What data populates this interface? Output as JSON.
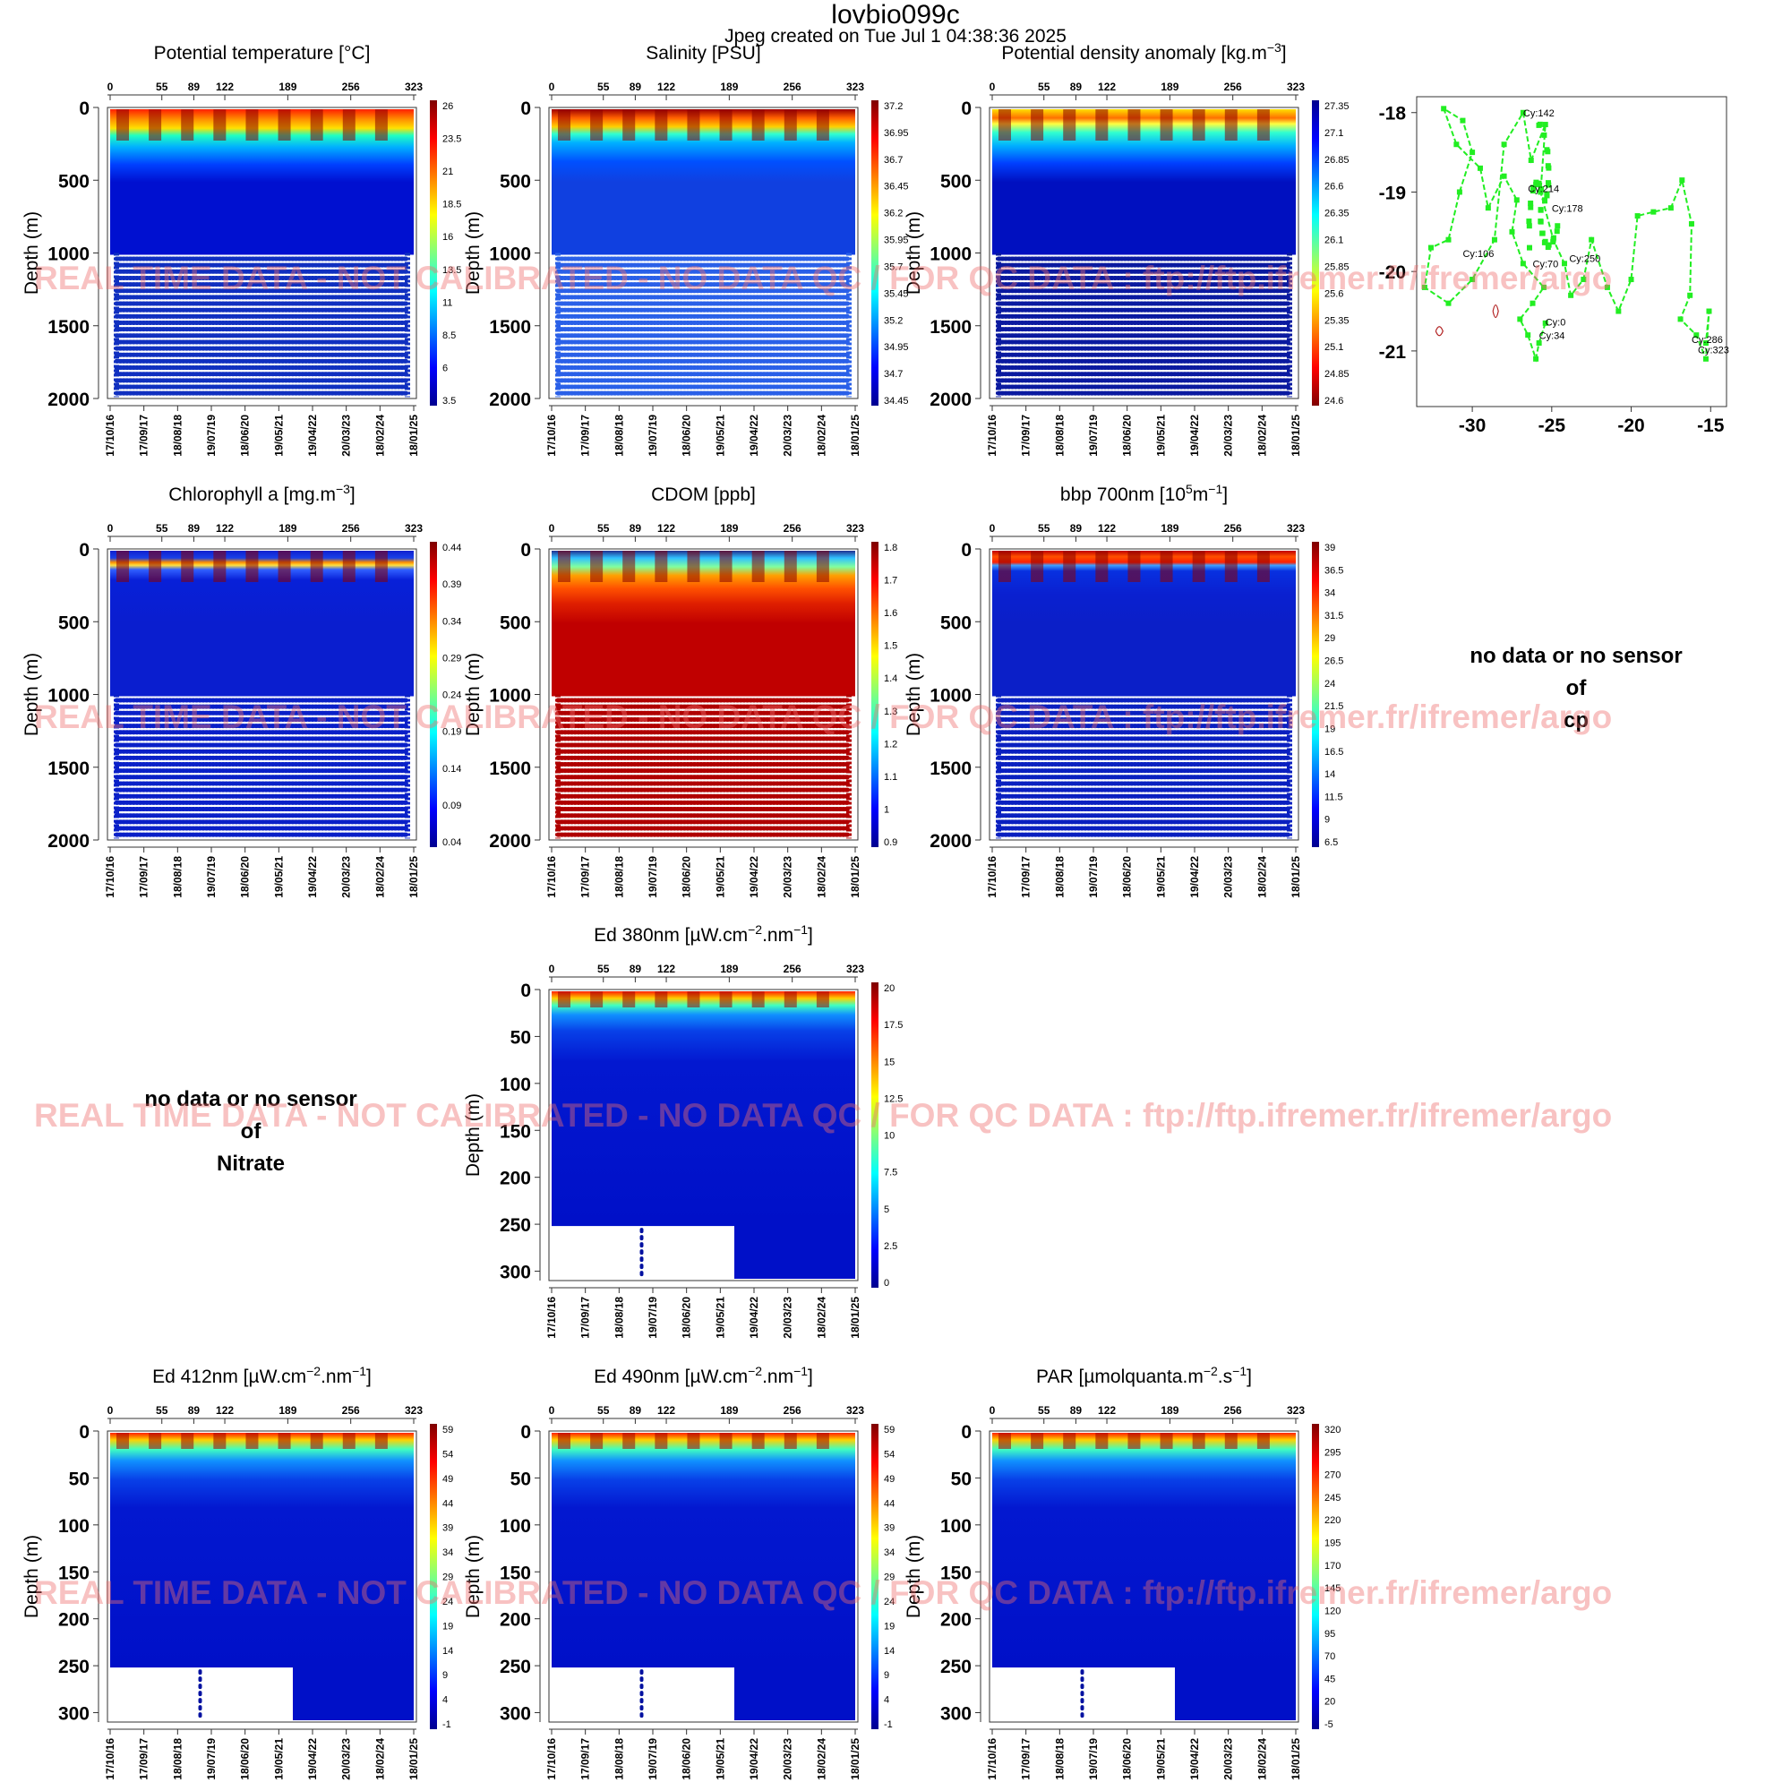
{
  "header": {
    "title": "lovbio099c",
    "subtitle": "Jpeg created on  Tue Jul  1 04:38:36 2025"
  },
  "watermark": "REAL TIME DATA - NOT CALIBRATED - NO DATA QC  /  FOR QC DATA : ftp://ftp.ifremer.fr/ifremer/argo",
  "colors": {
    "jet": [
      "#00008f",
      "#0000ff",
      "#007fff",
      "#00ffff",
      "#7fff7f",
      "#ffff00",
      "#ff7f00",
      "#ff0000",
      "#7f0000"
    ],
    "track": "#22ee22",
    "contour": "#b22222",
    "watermark": "#ee6e6e"
  },
  "chart_data": [
    {
      "type": "heatmap",
      "panel": "temp",
      "title_main": "Potential temperature [",
      "title_sup": "",
      "title_end": "°C]",
      "ylabel": "Depth (m)",
      "ylim": [
        2000,
        0
      ],
      "yticks": [
        0,
        500,
        1000,
        1500,
        2000
      ],
      "cycles": [
        0,
        55,
        89,
        122,
        189,
        256,
        323
      ],
      "dates": [
        "17/10/16",
        "17/09/17",
        "18/08/18",
        "19/07/19",
        "18/06/20",
        "19/05/21",
        "19/04/22",
        "20/03/23",
        "18/02/24",
        "18/01/25"
      ],
      "colorbar": [
        "26",
        "23.5",
        "21",
        "18.5",
        "16",
        "13.5",
        "11",
        "8.5",
        "6",
        "3.5"
      ],
      "reverse": false
    },
    {
      "type": "heatmap",
      "panel": "salinity",
      "title_main": "Salinity [PSU]",
      "title_sup": "",
      "title_end": "",
      "ylabel": "Depth (m)",
      "ylim": [
        2000,
        0
      ],
      "yticks": [
        0,
        500,
        1000,
        1500,
        2000
      ],
      "cycles": [
        0,
        55,
        89,
        122,
        189,
        256,
        323
      ],
      "dates": [
        "17/10/16",
        "17/09/17",
        "18/08/18",
        "19/07/19",
        "18/06/20",
        "19/05/21",
        "19/04/22",
        "20/03/23",
        "18/02/24",
        "18/01/25"
      ],
      "colorbar": [
        "37.2",
        "36.95",
        "36.7",
        "36.45",
        "36.2",
        "35.95",
        "35.7",
        "35.45",
        "35.2",
        "34.95",
        "34.7",
        "34.45"
      ],
      "reverse": false
    },
    {
      "type": "heatmap",
      "panel": "density",
      "title_main": "Potential density anomaly [kg.m",
      "title_sup": "−3",
      "title_end": "]",
      "ylabel": "Depth (m)",
      "ylim": [
        2000,
        0
      ],
      "yticks": [
        0,
        500,
        1000,
        1500,
        2000
      ],
      "cycles": [
        0,
        55,
        89,
        122,
        189,
        256,
        323
      ],
      "dates": [
        "17/10/16",
        "17/09/17",
        "18/08/18",
        "19/07/19",
        "18/06/20",
        "19/05/21",
        "19/04/22",
        "20/03/23",
        "18/02/24",
        "18/01/25"
      ],
      "colorbar": [
        "27.35",
        "27.1",
        "26.85",
        "26.6",
        "26.35",
        "26.1",
        "25.85",
        "25.6",
        "25.35",
        "25.1",
        "24.85",
        "24.6"
      ],
      "reverse": true
    },
    {
      "type": "heatmap",
      "panel": "chla",
      "title_main": "Chlorophyll a [mg.m",
      "title_sup": "−3",
      "title_end": "]",
      "ylabel": "Depth (m)",
      "ylim": [
        2000,
        0
      ],
      "yticks": [
        0,
        500,
        1000,
        1500,
        2000
      ],
      "cycles": [
        0,
        55,
        89,
        122,
        189,
        256,
        323
      ],
      "dates": [
        "17/10/16",
        "17/09/17",
        "18/08/18",
        "19/07/19",
        "18/06/20",
        "19/05/21",
        "19/04/22",
        "20/03/23",
        "18/02/24",
        "18/01/25"
      ],
      "colorbar": [
        "0.44",
        "0.39",
        "0.34",
        "0.29",
        "0.24",
        "0.19",
        "0.14",
        "0.09",
        "0.04"
      ],
      "reverse": false
    },
    {
      "type": "heatmap",
      "panel": "cdom",
      "title_main": "CDOM  [ppb]",
      "title_sup": "",
      "title_end": "",
      "ylabel": "Depth (m)",
      "ylim": [
        2000,
        0
      ],
      "yticks": [
        0,
        500,
        1000,
        1500,
        2000
      ],
      "cycles": [
        0,
        55,
        89,
        122,
        189,
        256,
        323
      ],
      "dates": [
        "17/10/16",
        "17/09/17",
        "18/08/18",
        "19/07/19",
        "18/06/20",
        "19/05/21",
        "19/04/22",
        "20/03/23",
        "18/02/24",
        "18/01/25"
      ],
      "colorbar": [
        "1.8",
        "1.7",
        "1.6",
        "1.5",
        "1.4",
        "1.3",
        "1.2",
        "1.1",
        "1",
        "0.9"
      ],
      "reverse": false
    },
    {
      "type": "heatmap",
      "panel": "bbp",
      "title_main": "bbp 700nm [10",
      "title_sup": "5",
      "title_end": "m",
      "title_sup2": "−1",
      "title_end2": "]",
      "ylabel": "Depth (m)",
      "ylim": [
        2000,
        0
      ],
      "yticks": [
        0,
        500,
        1000,
        1500,
        2000
      ],
      "cycles": [
        0,
        55,
        89,
        122,
        189,
        256,
        323
      ],
      "dates": [
        "17/10/16",
        "17/09/17",
        "18/08/18",
        "19/07/19",
        "18/06/20",
        "19/05/21",
        "19/04/22",
        "20/03/23",
        "18/02/24",
        "18/01/25"
      ],
      "colorbar": [
        "39",
        "36.5",
        "34",
        "31.5",
        "29",
        "26.5",
        "24",
        "21.5",
        "19",
        "16.5",
        "14",
        "11.5",
        "9",
        "6.5"
      ],
      "reverse": false
    },
    {
      "type": "heatmap",
      "panel": "ed380",
      "title_main": "Ed 380nm [µW.cm",
      "title_sup": "−2",
      "title_end": ".nm",
      "title_sup2": "−1",
      "title_end2": "]",
      "ylabel": "Depth (m)",
      "ylim": [
        310,
        0
      ],
      "yticks": [
        0,
        50,
        100,
        150,
        200,
        250,
        300
      ],
      "cycles": [
        0,
        55,
        89,
        122,
        189,
        256,
        323
      ],
      "dates": [
        "17/10/16",
        "17/09/17",
        "18/08/18",
        "19/07/19",
        "18/06/20",
        "19/05/21",
        "19/04/22",
        "20/03/23",
        "18/02/24",
        "18/01/25"
      ],
      "colorbar": [
        "20",
        "17.5",
        "15",
        "12.5",
        "10",
        "7.5",
        "5",
        "2.5",
        "0"
      ],
      "reverse": false
    },
    {
      "type": "heatmap",
      "panel": "ed412",
      "title_main": "Ed 412nm [µW.cm",
      "title_sup": "−2",
      "title_end": ".nm",
      "title_sup2": "−1",
      "title_end2": "]",
      "ylabel": "Depth (m)",
      "ylim": [
        310,
        0
      ],
      "yticks": [
        0,
        50,
        100,
        150,
        200,
        250,
        300
      ],
      "cycles": [
        0,
        55,
        89,
        122,
        189,
        256,
        323
      ],
      "dates": [
        "17/10/16",
        "17/09/17",
        "18/08/18",
        "19/07/19",
        "18/06/20",
        "19/05/21",
        "19/04/22",
        "20/03/23",
        "18/02/24",
        "18/01/25"
      ],
      "colorbar": [
        "59",
        "54",
        "49",
        "44",
        "39",
        "34",
        "29",
        "24",
        "19",
        "14",
        "9",
        "4",
        "-1"
      ],
      "reverse": false
    },
    {
      "type": "heatmap",
      "panel": "ed490",
      "title_main": "Ed 490nm [µW.cm",
      "title_sup": "−2",
      "title_end": ".nm",
      "title_sup2": "−1",
      "title_end2": "]",
      "ylabel": "Depth (m)",
      "ylim": [
        310,
        0
      ],
      "yticks": [
        0,
        50,
        100,
        150,
        200,
        250,
        300
      ],
      "cycles": [
        0,
        55,
        89,
        122,
        189,
        256,
        323
      ],
      "dates": [
        "17/10/16",
        "17/09/17",
        "18/08/18",
        "19/07/19",
        "18/06/20",
        "19/05/21",
        "19/04/22",
        "20/03/23",
        "18/02/24",
        "18/01/25"
      ],
      "colorbar": [
        "59",
        "54",
        "49",
        "44",
        "39",
        "34",
        "29",
        "24",
        "19",
        "14",
        "9",
        "4",
        "-1"
      ],
      "reverse": false
    },
    {
      "type": "heatmap",
      "panel": "par",
      "title_main": "PAR [µmolquanta.m",
      "title_sup": "−2",
      "title_end": ".s",
      "title_sup2": "−1",
      "title_end2": "]",
      "ylabel": "Depth (m)",
      "ylim": [
        310,
        0
      ],
      "yticks": [
        0,
        50,
        100,
        150,
        200,
        250,
        300
      ],
      "cycles": [
        0,
        55,
        89,
        122,
        189,
        256,
        323
      ],
      "dates": [
        "17/10/16",
        "17/09/17",
        "18/08/18",
        "19/07/19",
        "18/06/20",
        "19/05/21",
        "19/04/22",
        "20/03/23",
        "18/02/24",
        "18/01/25"
      ],
      "colorbar": [
        "320",
        "295",
        "270",
        "245",
        "220",
        "195",
        "170",
        "145",
        "120",
        "95",
        "70",
        "45",
        "20",
        "-5"
      ],
      "reverse": false
    },
    {
      "type": "scatter",
      "panel": "trajectory",
      "xlim": [
        -33.5,
        -14.0
      ],
      "ylim": [
        -21.7,
        -17.8
      ],
      "xticks": [
        -30,
        -25,
        -20,
        -15
      ],
      "yticks": [
        -18,
        -19,
        -20,
        -21
      ],
      "labels": [
        {
          "text": "Cy:142",
          "x": -26.8,
          "y": -18.05
        },
        {
          "text": "Cy:214",
          "x": -26.5,
          "y": -19.0
        },
        {
          "text": "Cy:178",
          "x": -25.0,
          "y": -19.25
        },
        {
          "text": "Cy:106",
          "x": -30.6,
          "y": -19.82
        },
        {
          "text": "Cy:70",
          "x": -26.2,
          "y": -19.95
        },
        {
          "text": "Cy:250",
          "x": -23.9,
          "y": -19.88
        },
        {
          "text": "Cy:0",
          "x": -25.4,
          "y": -20.68
        },
        {
          "text": "Cy:34",
          "x": -25.8,
          "y": -20.85
        },
        {
          "text": "Cy:286",
          "x": -16.2,
          "y": -20.9
        },
        {
          "text": "Cy:323",
          "x": -15.8,
          "y": -21.03
        }
      ]
    }
  ],
  "nodata": {
    "cp": {
      "line1": "no data or no sensor",
      "line2": "of",
      "line3": "cp"
    },
    "nitrate": {
      "line1": "no data or no sensor",
      "line2": "of",
      "line3": "Nitrate"
    }
  }
}
